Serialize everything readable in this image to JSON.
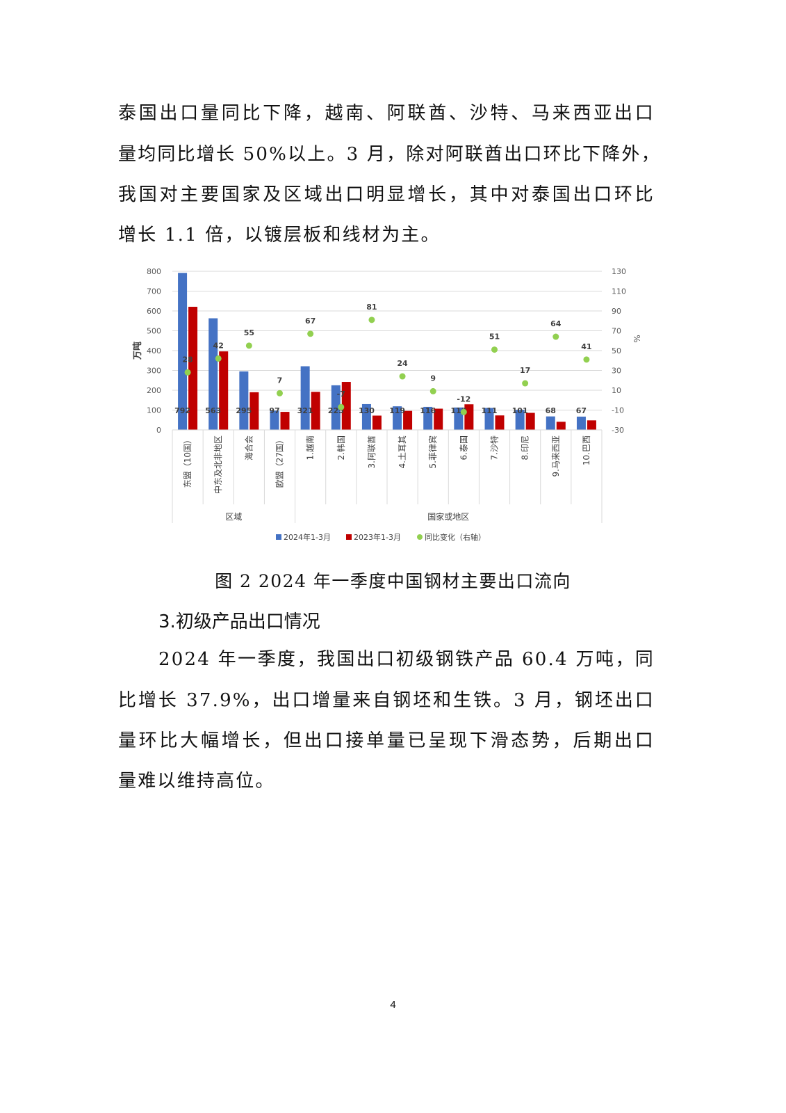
{
  "paragraph1": [
    "泰国出口量同比下降，越南、阿联酋、沙特、马来西亚出口",
    "量均同比增长 50%以上。3 月，除对阿联酋出口环比下降外，",
    "我国对主要国家及区域出口明显增长，其中对泰国出口环比",
    "增长 1.1 倍，以镀层板和线材为主。"
  ],
  "caption": "图 2 2024 年一季度中国钢材主要出口流向",
  "heading": "3.初级产品出口情况",
  "paragraph2": [
    "2024 年一季度，我国出口初级钢铁产品 60.4 万吨，同",
    "比增长 37.9%，出口增量来自钢坯和生铁。3 月，钢坯出口",
    "量环比大幅增长，但出口接单量已呈现下滑态势，后期出口",
    "量难以维持高位。"
  ],
  "page_number": "4",
  "chart_data": {
    "type": "bar",
    "title": "",
    "ylabel": "万吨",
    "y2label": "%",
    "ylim": [
      0,
      800
    ],
    "yticks": [
      "0",
      "100",
      "200",
      "300",
      "400",
      "500",
      "600",
      "700",
      "800"
    ],
    "y2lim": [
      -30,
      130
    ],
    "y2ticks": [
      "-30",
      "-10",
      "10",
      "30",
      "50",
      "70",
      "90",
      "110",
      "130"
    ],
    "grid": true,
    "legend_position": "bottom",
    "categories": [
      "东盟（10国）",
      "中东及北非地区",
      "海合会",
      "欧盟（27国）",
      "1.越南",
      "2.韩国",
      "3.阿联酋",
      "4.土耳其",
      "5.菲律宾",
      "6.泰国",
      "7.沙特",
      "8.印尼",
      "9.马来西亚",
      "10.巴西"
    ],
    "groups": [
      {
        "label": "区域",
        "count": 4
      },
      {
        "label": "国家或地区",
        "count": 10
      }
    ],
    "series": [
      {
        "name": "2024年1-3月",
        "type": "bar",
        "color": "#4472C4",
        "values": [
          792,
          563,
          295,
          97,
          321,
          225,
          130,
          119,
          116,
          113,
          111,
          101,
          68,
          67
        ],
        "labels": [
          "792",
          "563",
          "295",
          "97",
          "321",
          "225",
          "130",
          "119",
          "116",
          "113",
          "111",
          "101",
          "68",
          "67"
        ]
      },
      {
        "name": "2023年1-3月",
        "type": "bar",
        "color": "#C00000",
        "values": [
          621,
          396,
          190,
          91,
          192,
          242,
          72,
          96,
          107,
          129,
          73,
          86,
          41,
          48
        ]
      },
      {
        "name": "同比变化（右轴）",
        "type": "scatter",
        "axis": "right",
        "color": "#92D050",
        "values": [
          28,
          42,
          55,
          7,
          67,
          -7,
          81,
          24,
          9,
          -12,
          51,
          17,
          64,
          41
        ],
        "labels": [
          "28",
          "42",
          "55",
          "7",
          "67",
          "-7",
          "81",
          "24",
          "9",
          "-12",
          "51",
          "17",
          "64",
          "41"
        ]
      }
    ]
  }
}
